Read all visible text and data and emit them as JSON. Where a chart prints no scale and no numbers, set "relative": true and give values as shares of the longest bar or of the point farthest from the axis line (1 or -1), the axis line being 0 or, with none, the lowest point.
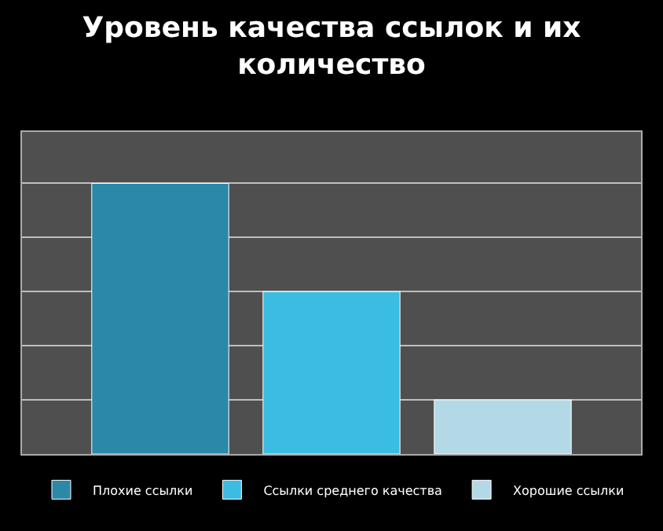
{
  "chart_data": {
    "type": "bar",
    "title": "Уровень качества ссылок и их количество",
    "relative": true,
    "categories": [
      null
    ],
    "grid": "y",
    "legend": "bottom",
    "series": [
      {
        "name": "Плохие ссылки",
        "color": "#2b88a8",
        "values": [
          1
        ]
      },
      {
        "name": "Ссылки среднего качества",
        "color": "#3bbde2",
        "values": [
          0.6
        ]
      },
      {
        "name": "Хорошие ссылки",
        "color": "#b3d9e6",
        "values": [
          0.2
        ]
      }
    ]
  }
}
